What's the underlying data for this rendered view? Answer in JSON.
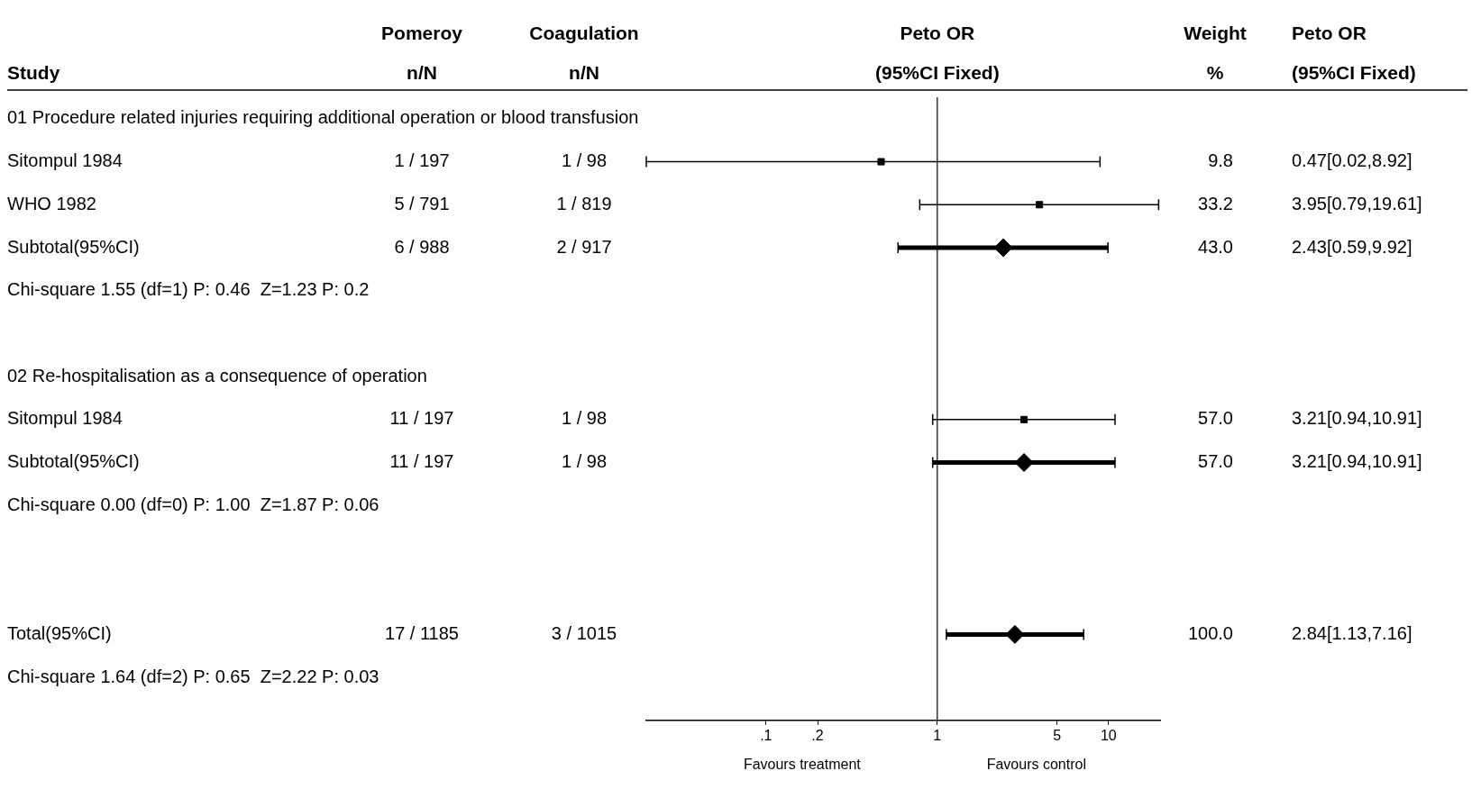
{
  "chart_data": {
    "type": "scatter",
    "orientation": "horizontal",
    "ylabel": "Study",
    "categories": [
      "01 Procedure related injuries requiring additional operation or blood transfusion",
      "Sitompul 1984",
      "WHO 1982",
      "Subtotal(95%CI)",
      "Chi-square 1.55 (df=1) P: 0.46  Z=1.23 P: 0.2",
      null,
      "02 Re-hospitalisation as a consequence of operation",
      "Sitompul 1984",
      "Subtotal(95%CI)",
      "Chi-square 0.00 (df=0) P: 1.00  Z=1.87 P: 0.06",
      null,
      null,
      "Total(95%CI)",
      "Chi-square 1.64 (df=2) P: 0.65  Z=2.22 P: 0.03"
    ],
    "series": [
      {
        "marker": "square",
        "color": "#000000",
        "values": [
          null,
          0.47,
          3.95,
          null,
          null,
          null,
          null,
          3.21,
          null,
          null,
          null,
          null,
          null,
          null
        ],
        "errors": [
          null,
          [
            0.02,
            8.92
          ],
          [
            0.79,
            19.61
          ],
          null,
          null,
          null,
          null,
          [
            0.94,
            10.91
          ],
          null,
          null,
          null,
          null,
          null,
          null
        ]
      },
      {
        "marker": "diamond",
        "color": "#000000",
        "values": [
          null,
          null,
          null,
          2.43,
          null,
          null,
          null,
          null,
          3.21,
          null,
          null,
          null,
          2.84,
          null
        ],
        "errors": [
          null,
          null,
          null,
          [
            0.59,
            9.92
          ],
          null,
          null,
          null,
          null,
          [
            0.94,
            10.91
          ],
          null,
          null,
          null,
          [
            1.13,
            7.16
          ],
          null
        ]
      }
    ],
    "log": "x",
    "xlim": [
      0.02,
      20
    ],
    "xticks": [
      {
        "value": 0.1,
        "label": ".1"
      },
      {
        "value": 0.2,
        "label": ".2"
      },
      1,
      5,
      10
    ],
    "ref_lines": [
      {
        "axis": "x",
        "value": 1
      }
    ],
    "grid": false,
    "legend": false,
    "annotations": [
      "Pomeroy",
      "n/N",
      "Coagulation",
      "n/N",
      "Peto OR",
      "(95%CI Fixed)",
      "Weight",
      "%",
      "Peto OR",
      "(95%CI Fixed)",
      "Favours treatment",
      "Favours control",
      "1 / 197",
      "1 / 98",
      "9.8",
      "0.47[0.02,8.92]",
      "5 / 791",
      "1 / 819",
      "33.2",
      "3.95[0.79,19.61]",
      "6 / 988",
      "2 / 917",
      "43.0",
      "2.43[0.59,9.92]",
      "11 / 197",
      "1 / 98",
      "57.0",
      "3.21[0.94,10.91]",
      "11 / 197",
      "1 / 98",
      "57.0",
      "3.21[0.94,10.91]",
      "17 / 1185",
      "3 / 1015",
      "100.0",
      "2.84[1.13,7.16]"
    ]
  }
}
